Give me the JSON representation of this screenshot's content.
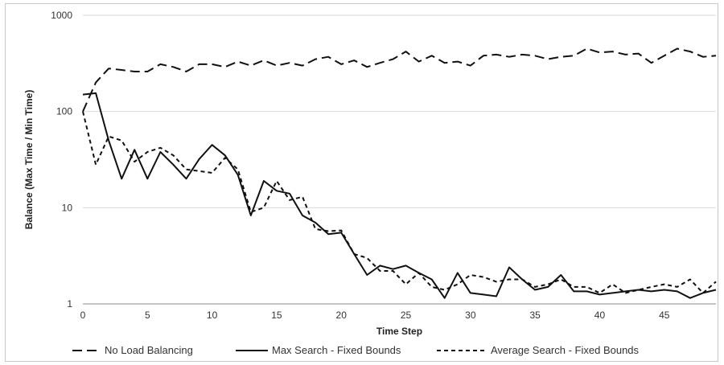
{
  "chart_data": {
    "type": "line",
    "title": "",
    "xlabel": "Time Step",
    "ylabel": "Balance (Max Time / Min Time)",
    "y_scale": "log",
    "ylim": [
      1,
      1000
    ],
    "xlim": [
      0,
      49
    ],
    "x_ticks": [
      0,
      5,
      10,
      15,
      20,
      25,
      30,
      35,
      40,
      45
    ],
    "y_ticks": [
      1,
      10,
      100,
      1000
    ],
    "grid": "horizontal",
    "legend_position": "bottom",
    "x": [
      0,
      1,
      2,
      3,
      4,
      5,
      6,
      7,
      8,
      9,
      10,
      11,
      12,
      13,
      14,
      15,
      16,
      17,
      18,
      19,
      20,
      21,
      22,
      23,
      24,
      25,
      26,
      27,
      28,
      29,
      30,
      31,
      32,
      33,
      34,
      35,
      36,
      37,
      38,
      39,
      40,
      41,
      42,
      43,
      44,
      45,
      46,
      47,
      48,
      49
    ],
    "series": [
      {
        "name": "No Load Balancing",
        "dash": "long-dash",
        "values": [
          100,
          200,
          280,
          270,
          260,
          260,
          310,
          290,
          260,
          310,
          310,
          290,
          330,
          300,
          340,
          300,
          320,
          300,
          350,
          370,
          310,
          340,
          290,
          320,
          350,
          420,
          330,
          380,
          320,
          330,
          300,
          380,
          390,
          370,
          390,
          380,
          350,
          370,
          380,
          450,
          410,
          420,
          390,
          400,
          320,
          380,
          450,
          420,
          370,
          380
        ]
      },
      {
        "name": "Max Search - Fixed Bounds",
        "dash": "solid",
        "values": [
          150,
          155,
          50,
          20,
          40,
          20,
          38,
          28,
          20,
          32,
          45,
          35,
          22,
          8.3,
          19,
          15,
          14,
          8.3,
          7,
          5.3,
          5.5,
          3.3,
          2.0,
          2.5,
          2.3,
          2.5,
          2.1,
          1.8,
          1.15,
          2.1,
          1.3,
          1.25,
          1.2,
          2.4,
          1.8,
          1.4,
          1.5,
          2.0,
          1.35,
          1.35,
          1.25,
          1.3,
          1.35,
          1.4,
          1.35,
          1.4,
          1.35,
          1.15,
          1.3,
          1.4
        ]
      },
      {
        "name": "Average Search - Fixed Bounds",
        "dash": "short-dash",
        "values": [
          100,
          28,
          55,
          50,
          30,
          38,
          42,
          35,
          25,
          24,
          23,
          33,
          25,
          9,
          10,
          19,
          12,
          13,
          6,
          5.7,
          5.8,
          3.3,
          3.0,
          2.2,
          2.2,
          1.6,
          2.1,
          1.5,
          1.4,
          1.6,
          2.0,
          1.9,
          1.7,
          1.8,
          1.8,
          1.5,
          1.6,
          1.8,
          1.5,
          1.5,
          1.3,
          1.6,
          1.3,
          1.4,
          1.5,
          1.6,
          1.5,
          1.8,
          1.3,
          1.7
        ]
      }
    ]
  }
}
